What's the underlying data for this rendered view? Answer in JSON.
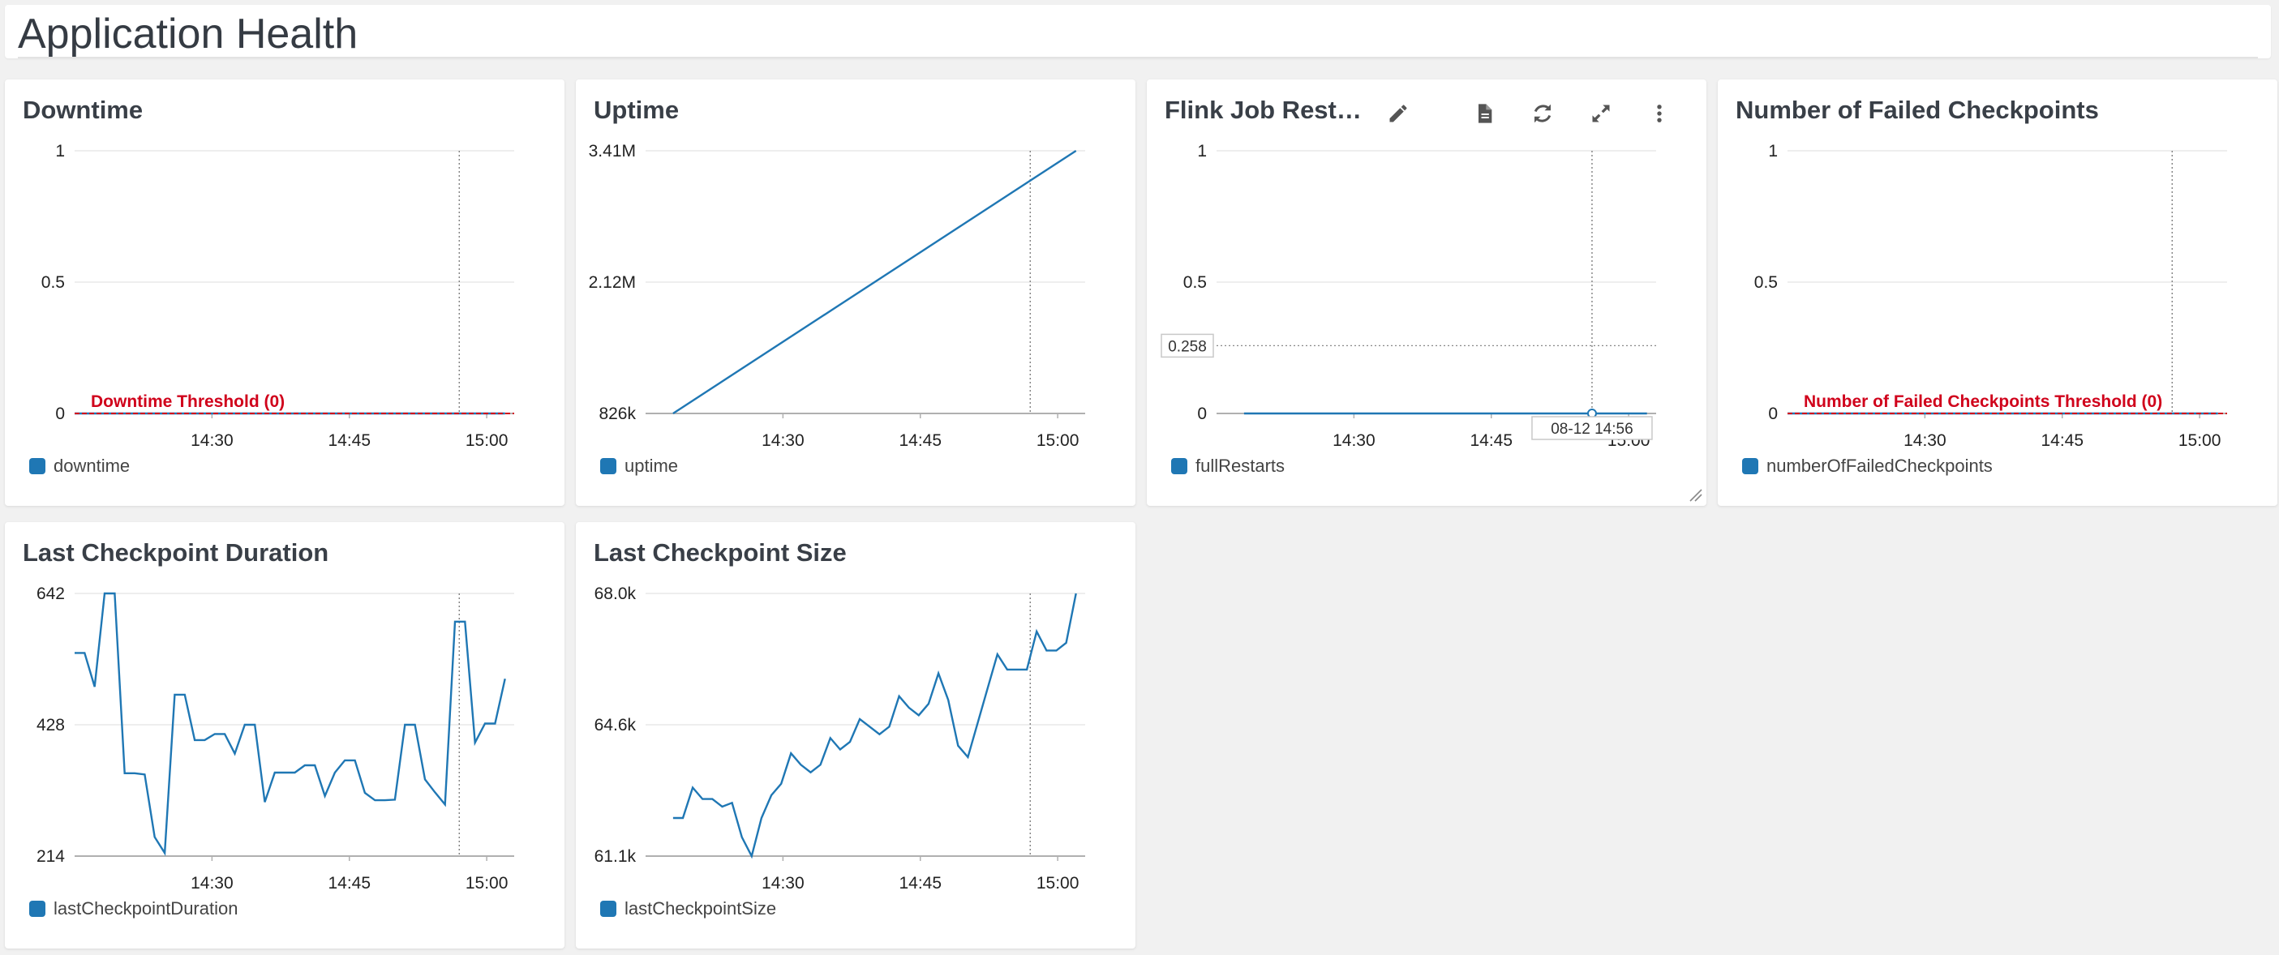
{
  "page_title": "Application Health",
  "colors": {
    "series": "#1f77b4",
    "threshold": "#d0021b",
    "grid": "#e4e4e4",
    "axis": "#b0b0b0"
  },
  "icons": [
    "pencil-icon",
    "document-icon",
    "refresh-icon",
    "expand-icon",
    "more-vertical-icon",
    "resize-icon"
  ],
  "widgets": [
    {
      "id": "downtime",
      "title": "Downtime",
      "legend": "downtime",
      "threshold_label": "Downtime Threshold (0)",
      "chart_data": {
        "type": "line",
        "x": [
          "14:15",
          "14:20",
          "14:25",
          "14:30",
          "14:35",
          "14:40",
          "14:45",
          "14:50",
          "14:55",
          "15:00",
          "15:02"
        ],
        "series": [
          {
            "name": "downtime",
            "values": [
              0,
              0,
              0,
              0,
              0,
              0,
              0,
              0,
              0,
              0,
              0
            ]
          }
        ],
        "yticks": [
          "1",
          "0.5",
          "0"
        ],
        "ylim": [
          0,
          1
        ],
        "xticks": [
          "14:30",
          "14:45",
          "15:00"
        ],
        "threshold": 0,
        "marker_x": "14:57"
      }
    },
    {
      "id": "uptime",
      "title": "Uptime",
      "legend": "uptime",
      "chart_data": {
        "type": "line",
        "x": [
          "14:18",
          "15:02"
        ],
        "series": [
          {
            "name": "uptime",
            "values": [
              826000,
              3410000
            ]
          }
        ],
        "yticks": [
          "3.41M",
          "2.12M",
          "826k"
        ],
        "ylim": [
          826000,
          3410000
        ],
        "xticks": [
          "14:30",
          "14:45",
          "15:00"
        ],
        "marker_x": "14:57"
      }
    },
    {
      "id": "flink-restarts",
      "title": "Flink Job Rest…",
      "legend": "fullRestarts",
      "hover_value": "0.258",
      "hover_time": "08-12 14:56",
      "chart_data": {
        "type": "line",
        "x": [
          "14:18",
          "14:30",
          "14:45",
          "14:56",
          "15:02"
        ],
        "series": [
          {
            "name": "fullRestarts",
            "values": [
              0,
              0,
              0,
              0,
              0
            ]
          }
        ],
        "yticks": [
          "1",
          "0.5",
          "0"
        ],
        "ylim": [
          0,
          1
        ],
        "xticks": [
          "14:30",
          "14:45",
          "15:00"
        ],
        "marker_x": "14:56",
        "crosshair_y": 0.258
      }
    },
    {
      "id": "failed-checkpoints",
      "title": "Number of Failed Checkpoints",
      "legend": "numberOfFailedCheckpoints",
      "threshold_label": "Number of Failed Checkpoints Threshold (0)",
      "chart_data": {
        "type": "line",
        "x": [
          "14:15",
          "14:30",
          "14:45",
          "15:00",
          "15:02"
        ],
        "series": [
          {
            "name": "numberOfFailedCheckpoints",
            "values": [
              0,
              0,
              0,
              0,
              0
            ]
          }
        ],
        "yticks": [
          "1",
          "0.5",
          "0"
        ],
        "ylim": [
          0,
          1
        ],
        "xticks": [
          "14:30",
          "14:45",
          "15:00"
        ],
        "threshold": 0,
        "marker_x": "14:57"
      }
    },
    {
      "id": "checkpoint-duration",
      "title": "Last Checkpoint Duration",
      "legend": "lastCheckpointDuration",
      "chart_data": {
        "type": "line",
        "x_start": "14:15",
        "x_end": "15:02",
        "series": [
          {
            "name": "lastCheckpointDuration",
            "values": [
              545,
              545,
              490,
              642,
              642,
              349,
              349,
              347,
              245,
              219,
              477,
              477,
              403,
              403,
              413,
              413,
              381,
              428,
              428,
              302,
              350,
              350,
              350,
              362,
              362,
              312,
              350,
              370,
              370,
              317,
              305,
              305,
              306,
              428,
              428,
              339,
              318,
              298,
              596,
              596,
              399,
              430,
              430,
              503
            ]
          }
        ],
        "yticks": [
          "642",
          "428",
          "214"
        ],
        "ylim": [
          214,
          642
        ],
        "xticks": [
          "14:30",
          "14:45",
          "15:00"
        ],
        "marker_x": "14:57"
      }
    },
    {
      "id": "checkpoint-size",
      "title": "Last Checkpoint Size",
      "legend": "lastCheckpointSize",
      "chart_data": {
        "type": "line",
        "x_start": "14:18",
        "x_end": "15:02",
        "series": [
          {
            "name": "lastCheckpointSize",
            "values": [
              62.1,
              62.1,
              62.9,
              62.6,
              62.6,
              62.4,
              62.5,
              61.6,
              61.1,
              62.1,
              62.7,
              63.0,
              63.8,
              63.5,
              63.3,
              63.5,
              64.2,
              63.9,
              64.1,
              64.7,
              64.5,
              64.3,
              64.5,
              65.3,
              65.0,
              64.8,
              65.1,
              65.9,
              65.2,
              64.0,
              63.7,
              64.6,
              65.5,
              66.4,
              66.0,
              66.0,
              66.0,
              67.0,
              66.5,
              66.5,
              66.7,
              68.0
            ]
          }
        ],
        "yticks": [
          "68.0k",
          "64.6k",
          "61.1k"
        ],
        "ylim": [
          61.1,
          68.0
        ],
        "xticks": [
          "14:30",
          "14:45",
          "15:00"
        ],
        "marker_x": "14:57"
      }
    }
  ]
}
